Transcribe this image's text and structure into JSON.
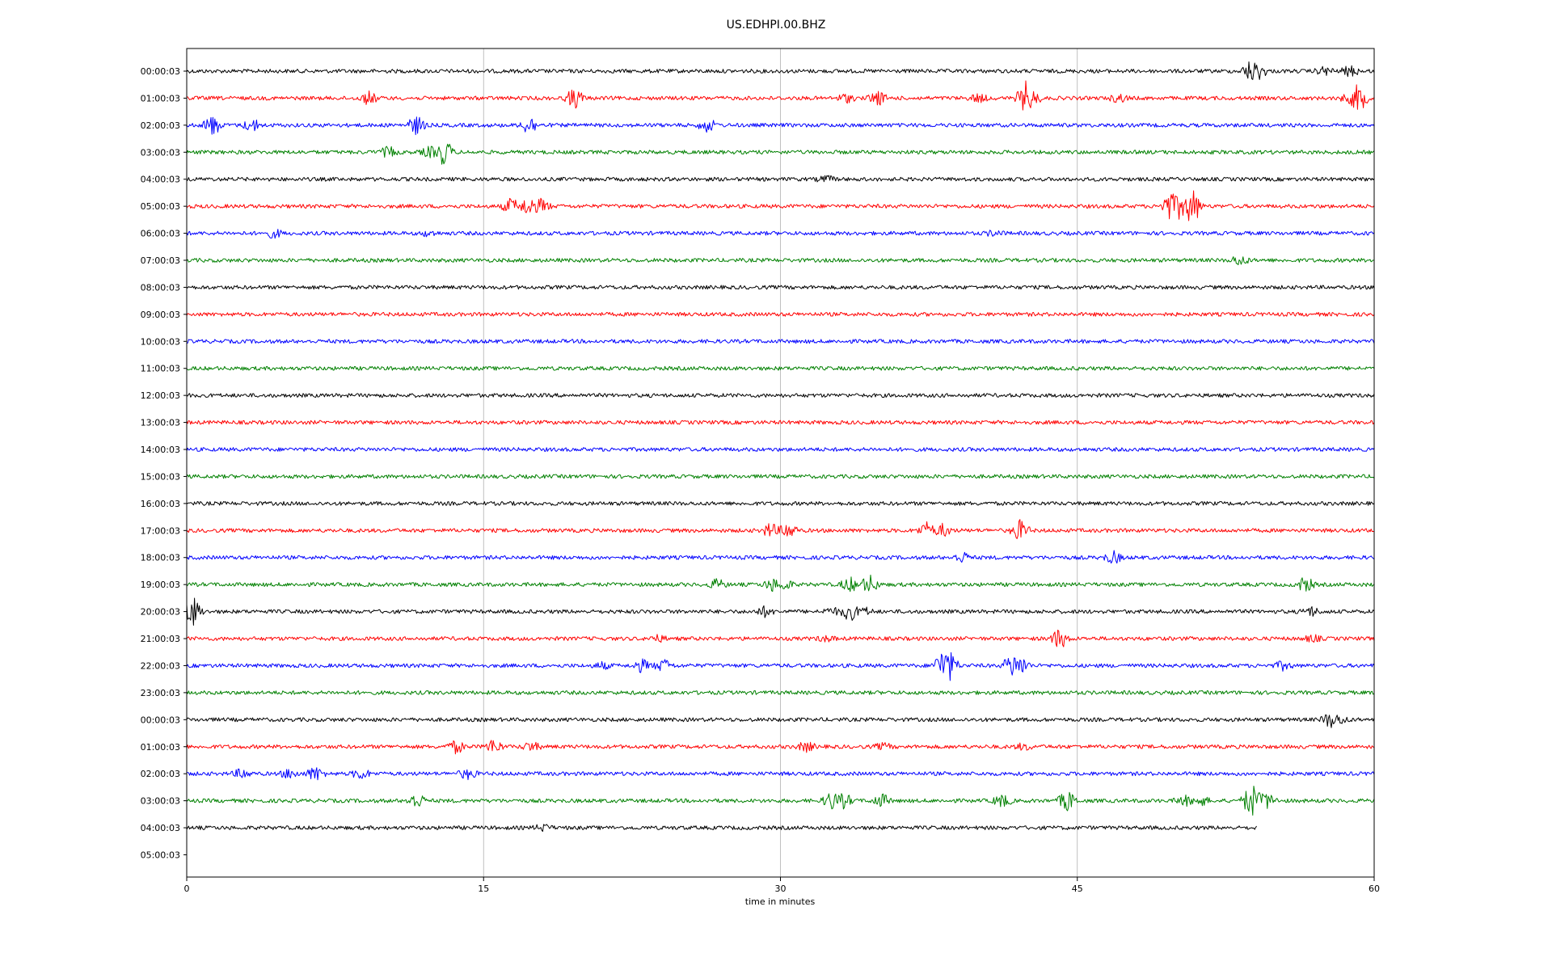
{
  "chart_data": {
    "type": "line",
    "title": "US.EDHPI.00.BHZ",
    "xlabel": "time in minutes",
    "ylabel": "",
    "xlim": [
      0,
      60
    ],
    "x_ticks": [
      0,
      15,
      30,
      45,
      60
    ],
    "x_tick_labels": [
      "0",
      "15",
      "30",
      "45",
      "60"
    ],
    "grid": "vertical gridlines at x ticks",
    "line_colors": [
      "#000000",
      "#ff0000",
      "#0000ff",
      "#008000"
    ],
    "series": [
      {
        "label": "00:00:03",
        "color": "#000000",
        "end_minute": 60,
        "events": [
          [
            53.8,
            2.2
          ],
          [
            54.1,
            1.8
          ],
          [
            57.5,
            0.8
          ],
          [
            58.8,
            1.0
          ]
        ]
      },
      {
        "label": "01:00:03",
        "color": "#ff0000",
        "end_minute": 60,
        "events": [
          [
            9.2,
            1.2
          ],
          [
            19.6,
            2.0
          ],
          [
            33.3,
            0.8
          ],
          [
            34.9,
            1.4
          ],
          [
            40.0,
            0.8
          ],
          [
            42.4,
            3.2
          ],
          [
            42.7,
            1.5
          ],
          [
            47.1,
            0.8
          ],
          [
            58.7,
            0.8
          ],
          [
            59.2,
            2.8
          ]
        ]
      },
      {
        "label": "02:00:03",
        "color": "#0000ff",
        "end_minute": 60,
        "events": [
          [
            1.3,
            2.0
          ],
          [
            3.3,
            1.2
          ],
          [
            11.6,
            1.8
          ],
          [
            17.3,
            1.8
          ],
          [
            26.3,
            1.3
          ]
        ]
      },
      {
        "label": "03:00:03",
        "color": "#008000",
        "end_minute": 60,
        "events": [
          [
            10.2,
            1.0
          ],
          [
            12.3,
            1.0
          ],
          [
            13.0,
            2.6
          ]
        ]
      },
      {
        "label": "04:00:03",
        "color": "#000000",
        "end_minute": 60,
        "events": [
          [
            32.3,
            0.6
          ]
        ]
      },
      {
        "label": "05:00:03",
        "color": "#ff0000",
        "end_minute": 60,
        "events": [
          [
            16.4,
            1.5
          ],
          [
            17.3,
            2.0
          ],
          [
            17.9,
            1.4
          ],
          [
            49.7,
            3.0
          ],
          [
            50.2,
            2.6
          ],
          [
            50.8,
            3.8
          ]
        ]
      },
      {
        "label": "06:00:03",
        "color": "#0000ff",
        "end_minute": 60,
        "events": [
          [
            4.4,
            0.8
          ],
          [
            12.2,
            0.5
          ],
          [
            40.8,
            0.5
          ]
        ]
      },
      {
        "label": "07:00:03",
        "color": "#008000",
        "end_minute": 60,
        "events": [
          [
            53.2,
            1.0
          ]
        ]
      },
      {
        "label": "08:00:03",
        "color": "#000000",
        "end_minute": 60,
        "events": []
      },
      {
        "label": "09:00:03",
        "color": "#ff0000",
        "end_minute": 60,
        "events": []
      },
      {
        "label": "10:00:03",
        "color": "#0000ff",
        "end_minute": 60,
        "events": []
      },
      {
        "label": "11:00:03",
        "color": "#008000",
        "end_minute": 60,
        "events": []
      },
      {
        "label": "12:00:03",
        "color": "#000000",
        "end_minute": 60,
        "events": []
      },
      {
        "label": "13:00:03",
        "color": "#ff0000",
        "end_minute": 60,
        "events": []
      },
      {
        "label": "14:00:03",
        "color": "#0000ff",
        "end_minute": 60,
        "events": []
      },
      {
        "label": "15:00:03",
        "color": "#008000",
        "end_minute": 60,
        "events": []
      },
      {
        "label": "16:00:03",
        "color": "#000000",
        "end_minute": 60,
        "events": []
      },
      {
        "label": "17:00:03",
        "color": "#ff0000",
        "end_minute": 60,
        "events": [
          [
            29.5,
            1.4
          ],
          [
            30.4,
            1.6
          ],
          [
            37.4,
            1.5
          ],
          [
            38.2,
            1.2
          ],
          [
            42.1,
            2.0
          ]
        ]
      },
      {
        "label": "18:00:03",
        "color": "#0000ff",
        "end_minute": 60,
        "events": [
          [
            39.2,
            1.0
          ],
          [
            46.8,
            1.2
          ]
        ]
      },
      {
        "label": "19:00:03",
        "color": "#008000",
        "end_minute": 60,
        "events": [
          [
            26.8,
            1.0
          ],
          [
            29.6,
            1.2
          ],
          [
            30.2,
            1.0
          ],
          [
            33.5,
            1.4
          ],
          [
            34.5,
            1.8
          ],
          [
            56.5,
            1.5
          ]
        ]
      },
      {
        "label": "20:00:03",
        "color": "#000000",
        "end_minute": 60,
        "events": [
          [
            0.3,
            3.0
          ],
          [
            29.2,
            0.9
          ],
          [
            32.6,
            0.7
          ],
          [
            33.5,
            1.8
          ],
          [
            34.2,
            0.8
          ],
          [
            56.8,
            0.9
          ]
        ]
      },
      {
        "label": "21:00:03",
        "color": "#ff0000",
        "end_minute": 60,
        "events": [
          [
            23.8,
            0.6
          ],
          [
            32.3,
            0.5
          ],
          [
            44.1,
            2.0
          ],
          [
            56.9,
            0.6
          ]
        ]
      },
      {
        "label": "22:00:03",
        "color": "#0000ff",
        "end_minute": 60,
        "events": [
          [
            21.0,
            0.6
          ],
          [
            23.0,
            1.2
          ],
          [
            24.1,
            1.2
          ],
          [
            38.2,
            3.2
          ],
          [
            38.5,
            3.2
          ],
          [
            41.7,
            2.3
          ],
          [
            42.1,
            2.0
          ],
          [
            55.4,
            0.8
          ]
        ]
      },
      {
        "label": "23:00:03",
        "color": "#008000",
        "end_minute": 60,
        "events": []
      },
      {
        "label": "00:00:03",
        "color": "#000000",
        "end_minute": 60,
        "events": [
          [
            57.8,
            1.6
          ],
          [
            58.3,
            0.8
          ]
        ]
      },
      {
        "label": "01:00:03",
        "color": "#ff0000",
        "end_minute": 60,
        "events": [
          [
            13.6,
            1.2
          ],
          [
            15.5,
            1.4
          ],
          [
            17.4,
            0.9
          ],
          [
            31.3,
            0.9
          ],
          [
            35.2,
            0.6
          ],
          [
            42.3,
            0.6
          ]
        ]
      },
      {
        "label": "02:00:03",
        "color": "#0000ff",
        "end_minute": 60,
        "events": [
          [
            2.8,
            0.9
          ],
          [
            5.2,
            0.9
          ],
          [
            6.5,
            1.4
          ],
          [
            8.8,
            1.0
          ],
          [
            14.2,
            1.0
          ]
        ]
      },
      {
        "label": "03:00:03",
        "color": "#008000",
        "end_minute": 60,
        "events": [
          [
            11.6,
            1.5
          ],
          [
            32.6,
            1.8
          ],
          [
            33.2,
            1.4
          ],
          [
            35.1,
            1.3
          ],
          [
            41.2,
            1.2
          ],
          [
            44.5,
            2.0
          ],
          [
            50.4,
            1.0
          ],
          [
            51.2,
            1.0
          ],
          [
            53.8,
            3.5
          ],
          [
            54.3,
            1.5
          ],
          [
            54.6,
            1.5
          ]
        ]
      },
      {
        "label": "04:00:03",
        "color": "#000000",
        "end_minute": 54.1,
        "events": [
          [
            18.0,
            0.6
          ]
        ]
      },
      {
        "label": "05:00:03",
        "color": "#008000",
        "end_minute": 0,
        "events": []
      }
    ]
  }
}
